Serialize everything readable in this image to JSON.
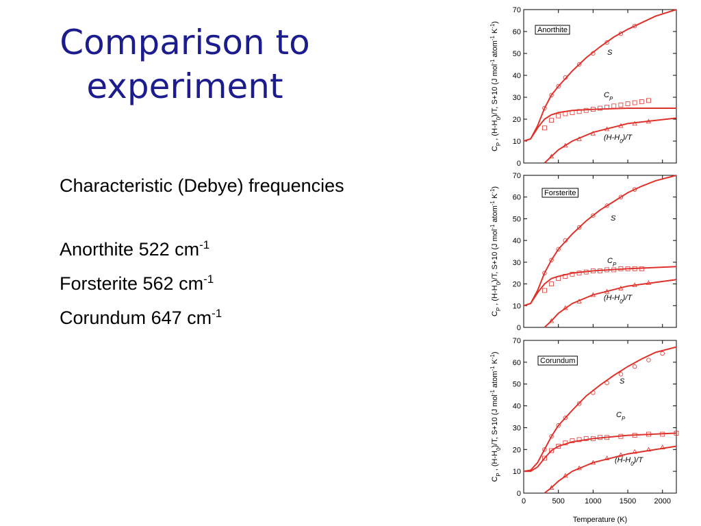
{
  "slide": {
    "title": [
      "Comparison to",
      "experiment"
    ],
    "heading": "Characteristic (Debye) frequencies",
    "items": [
      {
        "text": "Anorthite 522 cm",
        "sup": "-1"
      },
      {
        "text": "Forsterite 562 cm",
        "sup": "-1"
      },
      {
        "text": "Corundum 647 cm",
        "sup": "-1"
      }
    ]
  },
  "chart_data": [
    {
      "type": "line",
      "name": "Anorthite",
      "ylabel": [
        {
          "text": "C"
        },
        {
          "sub": "P"
        },
        {
          "text": " , (H-H"
        },
        {
          "sub": "0"
        },
        {
          "text": ")/T, S+10 (J mol"
        },
        {
          "sup": "-1"
        },
        {
          "text": " atom"
        },
        {
          "sup": "-1"
        },
        {
          "text": " K"
        },
        {
          "sup": "-1"
        },
        {
          "text": ")"
        }
      ],
      "annotations": [
        [
          {
            "text": "S"
          }
        ],
        [
          {
            "text": "C"
          },
          {
            "sub": "P"
          }
        ],
        [
          {
            "text": "(H-H"
          },
          {
            "sub": "0"
          },
          {
            "text": ")/T"
          }
        ]
      ],
      "xlim": [
        0,
        2200
      ],
      "xticks": [
        0,
        500,
        1000,
        1500,
        2000
      ],
      "xtick_labels": false,
      "ylim": [
        0,
        70
      ],
      "yticks": [
        0,
        10,
        20,
        30,
        40,
        50,
        60,
        70
      ],
      "series": [
        {
          "style": "line",
          "color": "#e0302a",
          "x": [
            0,
            100,
            200,
            300,
            400,
            500,
            700,
            900,
            1100,
            1300,
            1500,
            1700,
            1900,
            2200
          ],
          "values": [
            10,
            11,
            17,
            25,
            31,
            35,
            42,
            48,
            53,
            57.5,
            61,
            64,
            67,
            70
          ]
        },
        {
          "style": "line",
          "color": "#e0302a",
          "x": [
            0,
            100,
            200,
            300,
            400,
            500,
            700,
            1000,
            1500,
            2200
          ],
          "values": [
            10,
            11,
            16,
            20,
            22,
            23,
            24,
            24.5,
            25,
            25
          ]
        },
        {
          "style": "line",
          "color": "#e0302a",
          "x": [
            300,
            400,
            500,
            700,
            1000,
            1500,
            2200
          ],
          "values": [
            0,
            3,
            6,
            10,
            14,
            18,
            20.5
          ]
        },
        {
          "style": "circle",
          "color": "#e0302a",
          "x": [
            300,
            400,
            500,
            600,
            800,
            1000,
            1200,
            1400,
            1600
          ],
          "values": [
            25,
            31,
            35,
            39,
            45,
            50,
            55,
            59,
            62.5
          ]
        },
        {
          "style": "square",
          "color": "#e0302a",
          "x": [
            300,
            400,
            500,
            600,
            700,
            800,
            900,
            1000,
            1100,
            1200,
            1300,
            1400,
            1500,
            1600,
            1700,
            1800
          ],
          "values": [
            16,
            19.5,
            21.5,
            22.5,
            23,
            23.5,
            24,
            24.5,
            25,
            25.5,
            26,
            26.5,
            27,
            27.5,
            28,
            28.5
          ]
        },
        {
          "style": "triangle",
          "color": "#e0302a",
          "x": [
            400,
            600,
            800,
            1000,
            1200,
            1400,
            1600,
            1800
          ],
          "values": [
            3,
            8,
            11,
            13.5,
            15.5,
            17,
            18,
            19
          ]
        }
      ]
    },
    {
      "type": "line",
      "name": "Forsterite",
      "ylabel": [
        {
          "text": "C"
        },
        {
          "sub": "P"
        },
        {
          "text": " , (H-H"
        },
        {
          "sub": "0"
        },
        {
          "text": ")/T, S+10 (J mol"
        },
        {
          "sup": "-1"
        },
        {
          "text": " atom"
        },
        {
          "sup": "-1"
        },
        {
          "text": " K"
        },
        {
          "sup": "-1"
        },
        {
          "text": ")"
        }
      ],
      "annotations": [
        [
          {
            "text": "S"
          }
        ],
        [
          {
            "text": "C"
          },
          {
            "sub": "P"
          }
        ],
        [
          {
            "text": "(H-H"
          },
          {
            "sub": "0"
          },
          {
            "text": ")/T"
          }
        ]
      ],
      "xlim": [
        0,
        2200
      ],
      "xticks": [
        0,
        500,
        1000,
        1500,
        2000
      ],
      "xtick_labels": false,
      "ylim": [
        0,
        70
      ],
      "yticks": [
        0,
        10,
        20,
        30,
        40,
        50,
        60,
        70
      ],
      "series": [
        {
          "style": "line",
          "color": "#e0302a",
          "x": [
            0,
            100,
            200,
            300,
            400,
            500,
            700,
            900,
            1100,
            1300,
            1500,
            1700,
            1900,
            2200
          ],
          "values": [
            10,
            11,
            17,
            25,
            31,
            36,
            43,
            49,
            54,
            58,
            62,
            65,
            67.5,
            70
          ]
        },
        {
          "style": "line",
          "color": "#e0302a",
          "x": [
            0,
            100,
            200,
            300,
            400,
            500,
            700,
            1000,
            1500,
            2200
          ],
          "values": [
            10,
            11,
            16,
            20,
            22.5,
            23.5,
            25,
            26,
            27,
            28
          ]
        },
        {
          "style": "line",
          "color": "#e0302a",
          "x": [
            300,
            400,
            500,
            700,
            1000,
            1500,
            2200
          ],
          "values": [
            0,
            3,
            6.5,
            11,
            15,
            19,
            22
          ]
        },
        {
          "style": "circle",
          "color": "#e0302a",
          "x": [
            300,
            400,
            500,
            600,
            800,
            1000,
            1200,
            1400,
            1600
          ],
          "values": [
            25,
            31,
            36,
            40,
            46,
            51.5,
            56,
            60,
            63.5
          ]
        },
        {
          "style": "square",
          "color": "#e0302a",
          "x": [
            300,
            400,
            500,
            600,
            700,
            800,
            900,
            1000,
            1100,
            1200,
            1300,
            1400,
            1500,
            1600,
            1700
          ],
          "values": [
            17,
            20,
            22.5,
            23.5,
            24.5,
            25,
            25.5,
            26,
            26,
            26.5,
            26.5,
            27,
            27,
            27,
            27
          ]
        },
        {
          "style": "triangle",
          "color": "#e0302a",
          "x": [
            400,
            600,
            800,
            1000,
            1200,
            1400,
            1600,
            1800
          ],
          "values": [
            3,
            9,
            12,
            15,
            16.5,
            18,
            19.5,
            20.5
          ]
        }
      ]
    },
    {
      "type": "line",
      "name": "Corundum",
      "ylabel": [
        {
          "text": "C"
        },
        {
          "sub": "P"
        },
        {
          "text": " , (H-H"
        },
        {
          "sub": "0"
        },
        {
          "text": ")/T, S+10 (J mol"
        },
        {
          "sup": "-1"
        },
        {
          "text": " atom"
        },
        {
          "sup": "-1"
        },
        {
          "text": " K"
        },
        {
          "sup": "-1"
        },
        {
          "text": ")"
        }
      ],
      "annotations": [
        [
          {
            "text": "S"
          }
        ],
        [
          {
            "text": "C"
          },
          {
            "sub": "P"
          }
        ],
        [
          {
            "text": "(H-H"
          },
          {
            "sub": "0"
          },
          {
            "text": ")/T"
          }
        ]
      ],
      "xlabel": "Temperature (K)",
      "xlim": [
        0,
        2200
      ],
      "xticks": [
        0,
        500,
        1000,
        1500,
        2000
      ],
      "xtick_labels": true,
      "ylim": [
        0,
        70
      ],
      "yticks": [
        0,
        10,
        20,
        30,
        40,
        50,
        60,
        70
      ],
      "series": [
        {
          "style": "line",
          "color": "#e0302a",
          "x": [
            0,
            100,
            200,
            300,
            400,
            500,
            700,
            900,
            1100,
            1300,
            1500,
            1700,
            1900,
            2200
          ],
          "values": [
            10,
            10.5,
            14,
            20,
            26,
            31,
            38,
            44.5,
            49.5,
            54,
            58,
            61.5,
            64.5,
            67
          ]
        },
        {
          "style": "line",
          "color": "#e0302a",
          "x": [
            0,
            100,
            200,
            300,
            400,
            500,
            700,
            1000,
            1500,
            2200
          ],
          "values": [
            10,
            10,
            12,
            16,
            19.5,
            21.5,
            23.5,
            25,
            26.5,
            27.5
          ]
        },
        {
          "style": "line",
          "color": "#e0302a",
          "x": [
            300,
            400,
            500,
            700,
            1000,
            1500,
            2200
          ],
          "values": [
            0,
            2.5,
            5.5,
            10,
            14,
            18,
            21.5
          ]
        },
        {
          "style": "circle",
          "color": "#e0302a",
          "x": [
            300,
            400,
            500,
            600,
            800,
            1000,
            1200,
            1400,
            1600,
            1800,
            2000
          ],
          "values": [
            20,
            26,
            31,
            34.5,
            41,
            46,
            50.5,
            54.5,
            58,
            61,
            64
          ]
        },
        {
          "style": "square",
          "color": "#e0302a",
          "x": [
            300,
            400,
            500,
            600,
            700,
            800,
            900,
            1000,
            1100,
            1200,
            1400,
            1600,
            1800,
            2000,
            2200
          ],
          "values": [
            16,
            19.5,
            21.5,
            23,
            24,
            24.5,
            25,
            25,
            25.5,
            25.5,
            26,
            26.5,
            27,
            27,
            27.5
          ]
        },
        {
          "style": "triangle",
          "color": "#e0302a",
          "x": [
            400,
            600,
            800,
            1000,
            1200,
            1400,
            1600,
            1800,
            2000
          ],
          "values": [
            2.5,
            8,
            11.5,
            14,
            16,
            17.5,
            19,
            20,
            21
          ]
        }
      ]
    }
  ]
}
